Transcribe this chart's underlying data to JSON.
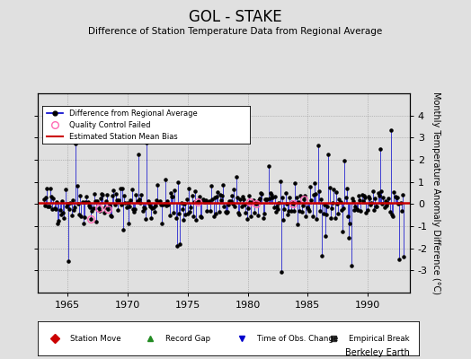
{
  "title": "GOL - STAKE",
  "subtitle": "Difference of Station Temperature Data from Regional Average",
  "xlabel_years": [
    1965,
    1970,
    1975,
    1980,
    1985,
    1990
  ],
  "xlim": [
    1962.5,
    1993.5
  ],
  "ylim": [
    -4,
    5
  ],
  "yticks": [
    -3,
    -2,
    -1,
    0,
    1,
    2,
    3,
    4
  ],
  "ylabel": "Monthly Temperature Anomaly Difference (°C)",
  "bias_line_value": 0.05,
  "bias_line_color": "#cc0000",
  "series_color": "#0000cc",
  "marker_color": "#000000",
  "qc_color": "#ff69b4",
  "background_color": "#e0e0e0",
  "plot_bg_color": "#e0e0e0",
  "watermark": "Berkeley Earth",
  "seed": 42,
  "n_points": 336,
  "start_year": 1963.0,
  "end_year": 1993.0
}
